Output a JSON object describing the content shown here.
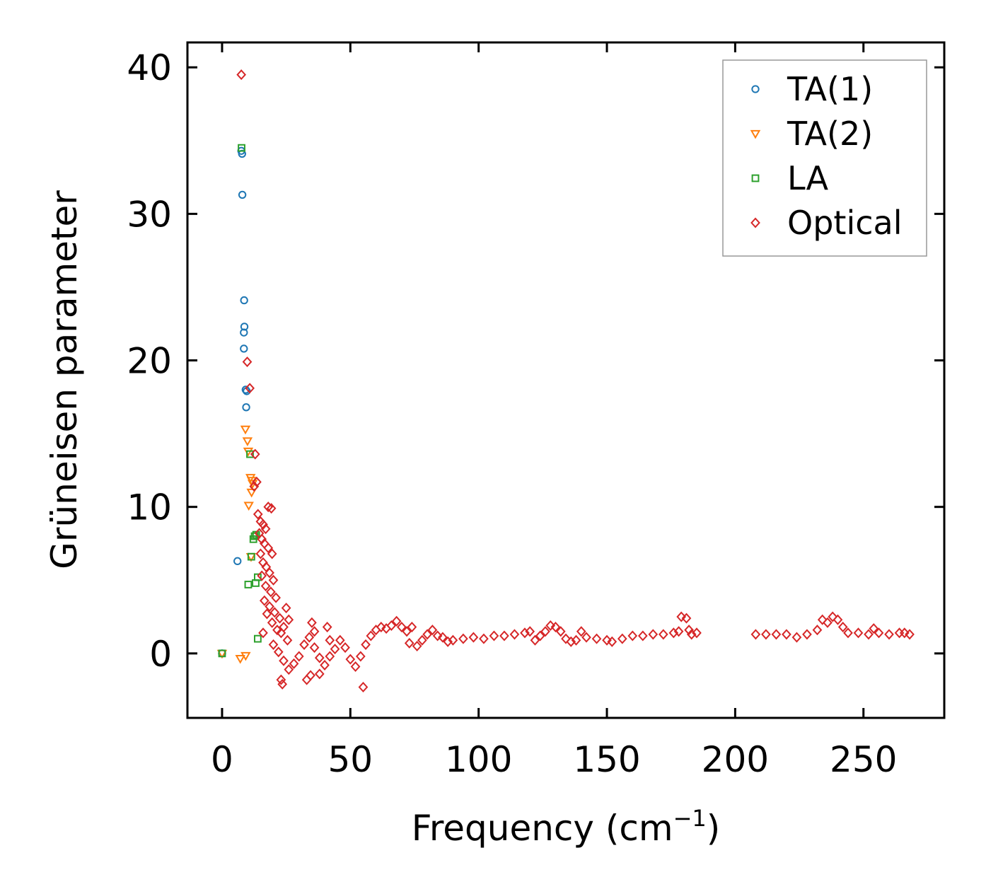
{
  "chart_data": {
    "type": "scatter",
    "title": "",
    "xlabel": "Frequency (cm",
    "xlabel_sup": "−1",
    "xlabel_close": ")",
    "ylabel": "Grüneisen parameter",
    "xlim": [
      -13.5,
      281.5
    ],
    "ylim": [
      -4.4,
      41.7
    ],
    "xticks": [
      0,
      50,
      100,
      150,
      200,
      250
    ],
    "yticks": [
      0,
      10,
      20,
      30,
      40
    ],
    "xtick_labels": [
      "0",
      "50",
      "100",
      "150",
      "200",
      "250"
    ],
    "ytick_labels": [
      "0",
      "10",
      "20",
      "30",
      "40"
    ],
    "legend_position": "top-right",
    "colors": {
      "ta1": "#1f77b4",
      "ta2": "#ff7f0e",
      "la": "#2ca02c",
      "optical": "#d62728"
    },
    "series": [
      {
        "name": "TA(1)",
        "marker": "circle",
        "color": "#1f77b4",
        "points": [
          [
            0,
            0
          ],
          [
            6,
            6.3
          ],
          [
            7.5,
            34.3
          ],
          [
            7.8,
            34.1
          ],
          [
            7.9,
            31.3
          ],
          [
            8.6,
            24.1
          ],
          [
            8.7,
            22.3
          ],
          [
            8.5,
            21.9
          ],
          [
            8.5,
            20.8
          ],
          [
            9.2,
            18
          ],
          [
            9.6,
            17.9
          ],
          [
            9.4,
            16.8
          ]
        ]
      },
      {
        "name": "TA(2)",
        "marker": "triangle-down",
        "color": "#ff7f0e",
        "points": [
          [
            0,
            0
          ],
          [
            7.1,
            -0.35
          ],
          [
            9.2,
            -0.15
          ],
          [
            9.1,
            15.3
          ],
          [
            9.9,
            14.5
          ],
          [
            10.2,
            13.8
          ],
          [
            11.1,
            12
          ],
          [
            11.6,
            11.8
          ],
          [
            11.9,
            11.6
          ],
          [
            11.5,
            11
          ],
          [
            10.4,
            10.1
          ],
          [
            11.3,
            6.6
          ]
        ]
      },
      {
        "name": "LA",
        "marker": "square",
        "color": "#2ca02c",
        "points": [
          [
            0,
            0
          ],
          [
            7.6,
            34.5
          ],
          [
            10.9,
            13.6
          ],
          [
            12.2,
            7.8
          ],
          [
            12.7,
            8
          ],
          [
            13.3,
            8.1
          ],
          [
            11.4,
            6.6
          ],
          [
            13.9,
            5.2
          ],
          [
            13.1,
            4.8
          ],
          [
            10.2,
            4.7
          ],
          [
            13.9,
            1
          ]
        ]
      },
      {
        "name": "Optical",
        "marker": "diamond",
        "color": "#d62728",
        "points": [
          [
            7.5,
            39.5
          ],
          [
            9.8,
            19.9
          ],
          [
            10.8,
            18.1
          ],
          [
            12.9,
            13.6
          ],
          [
            13.5,
            11.7
          ],
          [
            12.5,
            11.4
          ],
          [
            18,
            10
          ],
          [
            19.2,
            9.9
          ],
          [
            14,
            9.5
          ],
          [
            15,
            9
          ],
          [
            16,
            8.8
          ],
          [
            17,
            8.5
          ],
          [
            14.5,
            8.2
          ],
          [
            15.5,
            7.8
          ],
          [
            16.5,
            7.5
          ],
          [
            18,
            7.2
          ],
          [
            19.5,
            6.8
          ],
          [
            15,
            6.8
          ],
          [
            16,
            6.2
          ],
          [
            17.2,
            5.9
          ],
          [
            18.5,
            5.5
          ],
          [
            20,
            5
          ],
          [
            15.5,
            5.3
          ],
          [
            17,
            4.6
          ],
          [
            19,
            4.2
          ],
          [
            21,
            3.8
          ],
          [
            16.5,
            3.6
          ],
          [
            18.5,
            3.2
          ],
          [
            20.5,
            2.8
          ],
          [
            22.5,
            2.4
          ],
          [
            17.5,
            2.7
          ],
          [
            19.5,
            2.1
          ],
          [
            21.5,
            1.6
          ],
          [
            25,
            3.1
          ],
          [
            26,
            2.3
          ],
          [
            23,
            1.4
          ],
          [
            16,
            1.4
          ],
          [
            24,
            1.8
          ],
          [
            25.5,
            0.9
          ],
          [
            20,
            0.6
          ],
          [
            22,
            0.1
          ],
          [
            24,
            -0.5
          ],
          [
            26,
            -1.1
          ],
          [
            28,
            -0.7
          ],
          [
            30,
            -0.2
          ],
          [
            32,
            0.6
          ],
          [
            34,
            1.1
          ],
          [
            36,
            0.4
          ],
          [
            38,
            -0.3
          ],
          [
            40,
            -0.8
          ],
          [
            42,
            -0.2
          ],
          [
            44,
            0.3
          ],
          [
            46,
            0.9
          ],
          [
            48,
            0.4
          ],
          [
            50,
            -0.4
          ],
          [
            52,
            -0.9
          ],
          [
            54,
            -0.2
          ],
          [
            56,
            0.6
          ],
          [
            58,
            1.2
          ],
          [
            60,
            1.6
          ],
          [
            62,
            1.8
          ],
          [
            64,
            1.7
          ],
          [
            66,
            1.9
          ],
          [
            68,
            2.2
          ],
          [
            70,
            1.8
          ],
          [
            72,
            1.5
          ],
          [
            74,
            1.8
          ],
          [
            73,
            0.7
          ],
          [
            76,
            0.5
          ],
          [
            78,
            0.9
          ],
          [
            80,
            1.3
          ],
          [
            82,
            1.6
          ],
          [
            84,
            1.2
          ],
          [
            86,
            1.1
          ],
          [
            88,
            0.8
          ],
          [
            90,
            0.9
          ],
          [
            94,
            1
          ],
          [
            98,
            1.1
          ],
          [
            102,
            1
          ],
          [
            106,
            1.2
          ],
          [
            110,
            1.2
          ],
          [
            114,
            1.3
          ],
          [
            118,
            1.4
          ],
          [
            120,
            1.5
          ],
          [
            122,
            0.9
          ],
          [
            124,
            1.2
          ],
          [
            126,
            1.5
          ],
          [
            128,
            1.9
          ],
          [
            130,
            1.8
          ],
          [
            132,
            1.5
          ],
          [
            134,
            1
          ],
          [
            136,
            0.8
          ],
          [
            138,
            0.9
          ],
          [
            140,
            1.5
          ],
          [
            142,
            1.1
          ],
          [
            146,
            1
          ],
          [
            150,
            0.9
          ],
          [
            152,
            0.8
          ],
          [
            156,
            1
          ],
          [
            160,
            1.2
          ],
          [
            164,
            1.2
          ],
          [
            168,
            1.3
          ],
          [
            172,
            1.3
          ],
          [
            176,
            1.4
          ],
          [
            178,
            1.5
          ],
          [
            179,
            2.5
          ],
          [
            181,
            2.4
          ],
          [
            182,
            1.6
          ],
          [
            183,
            1.3
          ],
          [
            185,
            1.4
          ],
          [
            208,
            1.3
          ],
          [
            212,
            1.3
          ],
          [
            216,
            1.3
          ],
          [
            220,
            1.3
          ],
          [
            224,
            1.1
          ],
          [
            228,
            1.3
          ],
          [
            232,
            1.6
          ],
          [
            234,
            2.3
          ],
          [
            236,
            2.1
          ],
          [
            238,
            2.5
          ],
          [
            240,
            2.3
          ],
          [
            242,
            1.8
          ],
          [
            244,
            1.4
          ],
          [
            248,
            1.4
          ],
          [
            252,
            1.3
          ],
          [
            254,
            1.7
          ],
          [
            256,
            1.4
          ],
          [
            260,
            1.3
          ],
          [
            264,
            1.4
          ],
          [
            266,
            1.4
          ],
          [
            268,
            1.3
          ],
          [
            23,
            -1.8
          ],
          [
            23.5,
            -2.1
          ],
          [
            33,
            -1.8
          ],
          [
            34.5,
            -1.5
          ],
          [
            38,
            -1.4
          ],
          [
            55,
            -2.3
          ],
          [
            36,
            1.5
          ],
          [
            35,
            2.1
          ],
          [
            42,
            0.9
          ],
          [
            41,
            1.8
          ]
        ]
      }
    ]
  }
}
